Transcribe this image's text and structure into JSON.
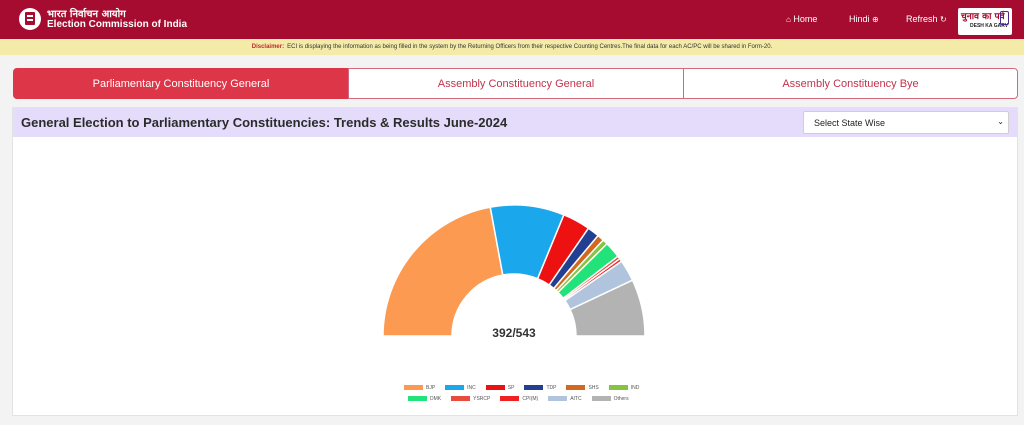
{
  "header": {
    "brand_hindi": "भारत निर्वाचन आयोग",
    "brand_english": "Election Commission of India",
    "nav": {
      "home": "Home",
      "hindi": "Hindi",
      "refresh": "Refresh"
    },
    "badge_hindi": "चुनाव का पर्व",
    "badge_english": "DESH KA GARV",
    "logo_icon": "eci-logo-icon"
  },
  "disclaimer": {
    "label": "Disclaimer:",
    "text": "ECI is displaying the information as being filled in the system by the Returning Officers from their respective Counting Centres.The final data for each AC/PC will be shared in Form-20."
  },
  "tabs": [
    {
      "label": "Parliamentary Constituency General",
      "active": true
    },
    {
      "label": "Assembly Constituency General",
      "active": false
    },
    {
      "label": "Assembly Constituency Bye",
      "active": false
    }
  ],
  "panel": {
    "title": "General Election to Parliamentary Constituencies: Trends & Results June-2024",
    "state_select": "Select State Wise"
  },
  "colors": {
    "header": "#a50c2f",
    "accent": "#dc3648",
    "panel_head": "#e5dcfb",
    "disclaimer_bg": "#f4eba8"
  },
  "chart_data": {
    "type": "pie",
    "subtype": "semi-donut",
    "center_label": "392/543",
    "slices": [
      {
        "name": "BJP",
        "value": 240,
        "color": "#fb9a50"
      },
      {
        "name": "INC",
        "value": 99,
        "color": "#1aa7ec"
      },
      {
        "name": "SP",
        "value": 37,
        "color": "#ee1111"
      },
      {
        "name": "TDP",
        "value": 16,
        "color": "#233f92"
      },
      {
        "name": "SHS",
        "value": 9,
        "color": "#d2691e"
      },
      {
        "name": "IND",
        "value": 7,
        "color": "#86c440"
      },
      {
        "name": "DMK",
        "value": 22,
        "color": "#22e27a"
      },
      {
        "name": "YSRCP",
        "value": 4,
        "color": "#e84c3d"
      },
      {
        "name": "CPI(M)",
        "value": 4,
        "color": "#ee2222"
      },
      {
        "name": "AITC",
        "value": 29,
        "color": "#b0c4de"
      },
      {
        "name": "Others",
        "value": 76,
        "color": "#b3b3b3"
      }
    ],
    "legend_position": "bottom"
  }
}
